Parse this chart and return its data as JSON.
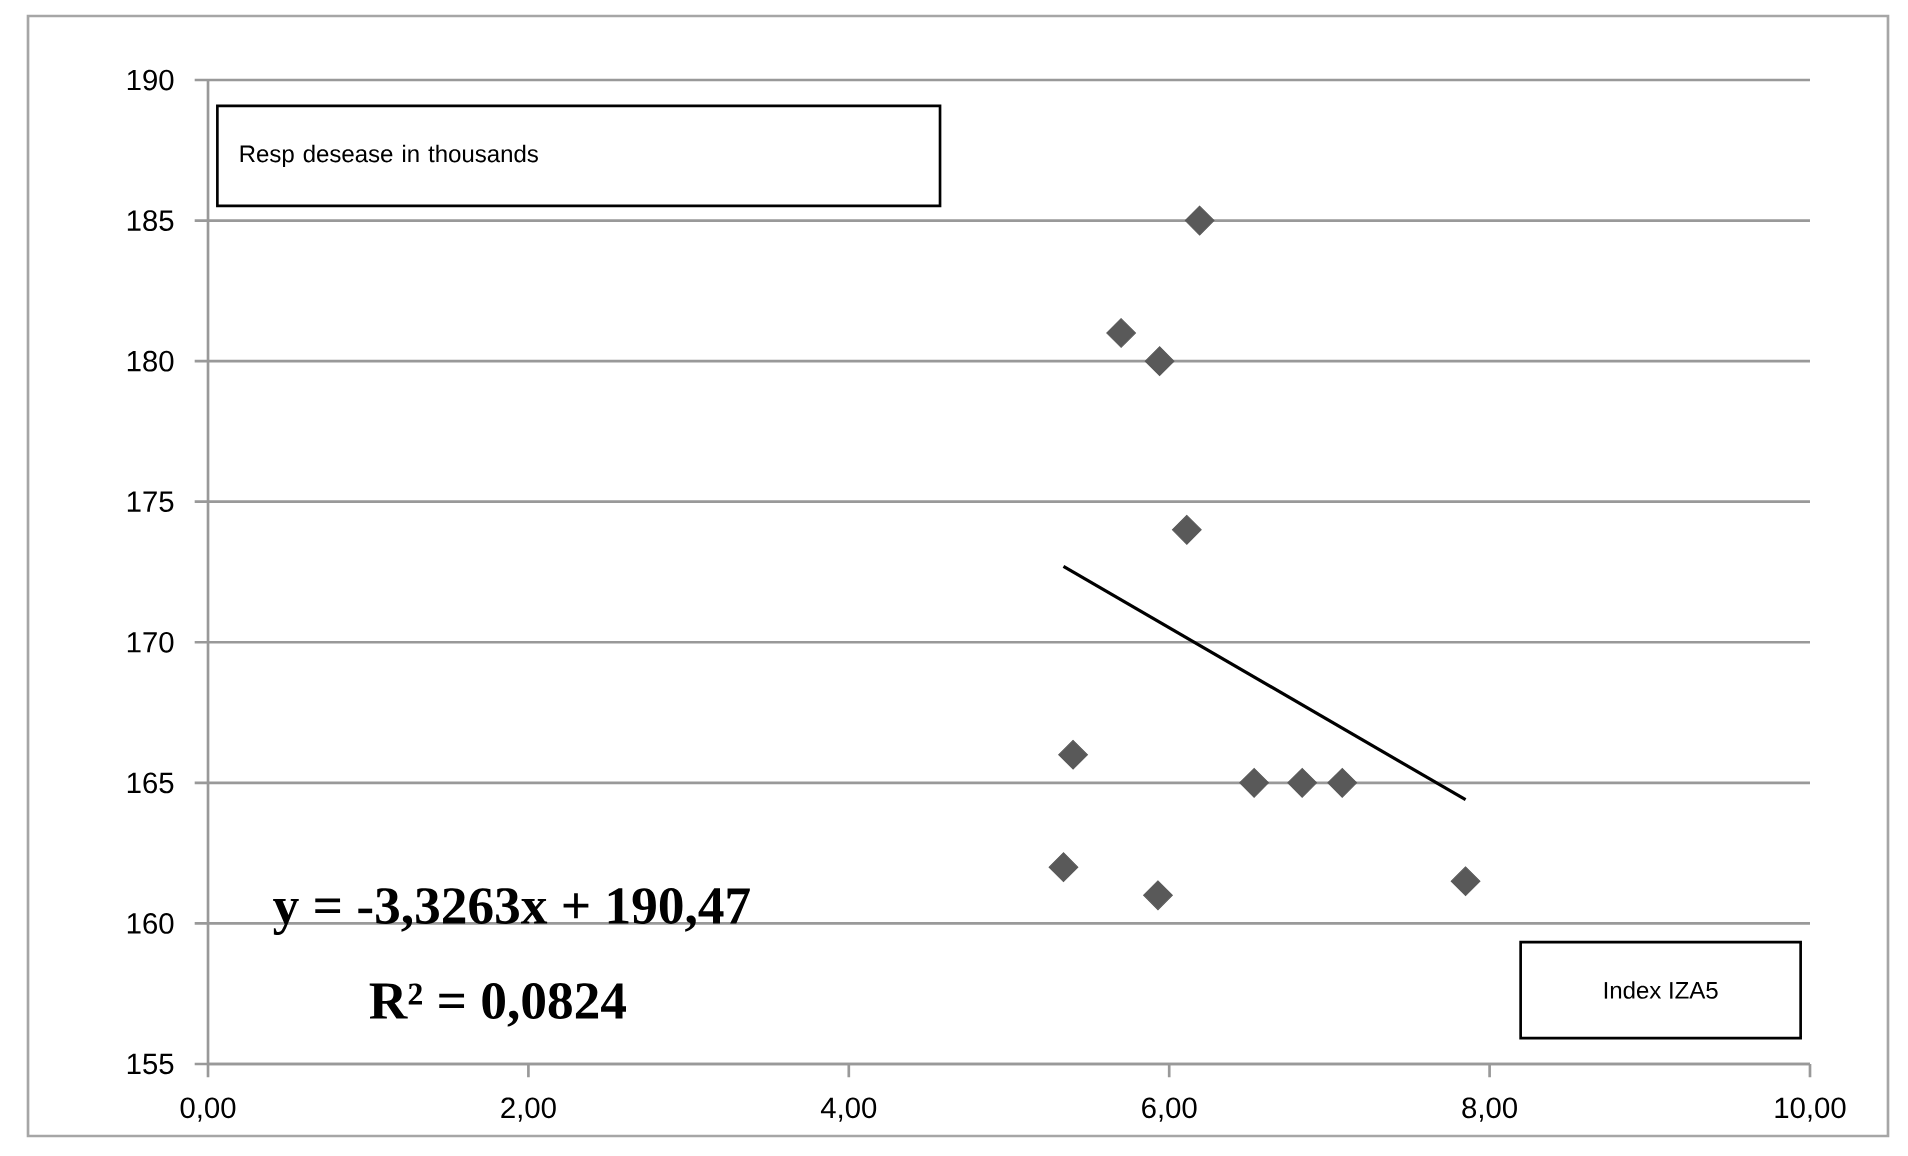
{
  "chart_data": {
    "type": "scatter",
    "xlabel": "Index IZA5",
    "ylabel": "Resp desease in thousands",
    "xlim": [
      0,
      10
    ],
    "xticks": [
      {
        "value": 0,
        "label": "0,00"
      },
      {
        "value": 2,
        "label": "2,00"
      },
      {
        "value": 4,
        "label": "4,00"
      },
      {
        "value": 6,
        "label": "6,00"
      },
      {
        "value": 8,
        "label": "8,00"
      },
      {
        "value": 10,
        "label": "10,00"
      }
    ],
    "ylim": [
      155,
      190
    ],
    "yticks": [
      155,
      160,
      165,
      170,
      175,
      180,
      185,
      190
    ],
    "grid": "y",
    "series": [
      {
        "color": "#595959",
        "marker": "diamond",
        "x": [
          5.34,
          5.4,
          5.7,
          5.94,
          5.93,
          6.11,
          6.19,
          6.53,
          6.83,
          7.08,
          7.85
        ],
        "values": [
          162,
          166,
          181,
          180,
          161,
          174,
          185,
          165,
          165,
          165,
          161.5
        ]
      },
      {
        "type": "line",
        "color": "#000000",
        "marker": "none",
        "x": [
          5.34,
          7.85
        ],
        "values": [
          172.7,
          164.4
        ]
      }
    ],
    "annotations": [
      "y = -3,3263x + 190,47",
      "R² = 0,0824"
    ]
  }
}
